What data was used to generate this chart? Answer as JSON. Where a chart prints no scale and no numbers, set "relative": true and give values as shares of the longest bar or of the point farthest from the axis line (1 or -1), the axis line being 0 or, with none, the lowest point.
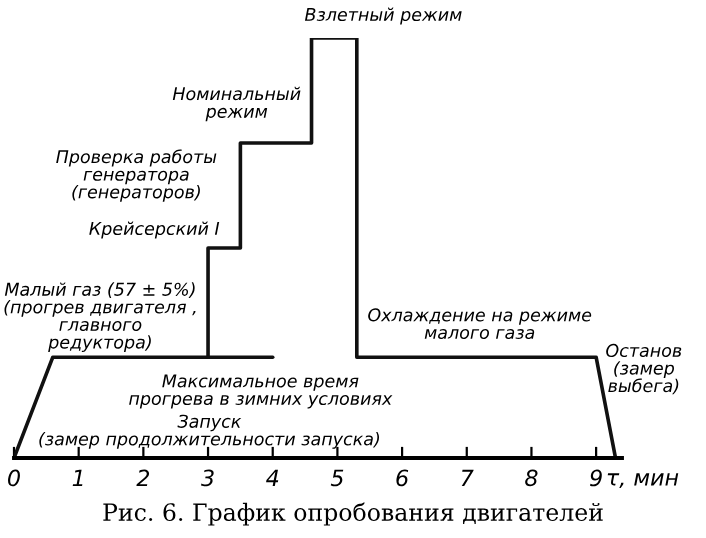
{
  "chart_data": {
    "type": "line",
    "relative": true,
    "title": "Рис. 6. График опробования двигателей",
    "xlabel": "τ, мин",
    "xlim": [
      0,
      9.4
    ],
    "xticks": [
      0,
      1,
      2,
      3,
      4,
      5,
      6,
      7,
      8,
      9
    ],
    "grid": false,
    "marker": "none",
    "line_style": "solid",
    "series": [
      {
        "color": "#111111",
        "x": [
          0,
          0.6,
          3,
          3,
          3.5,
          3.5,
          4.6,
          4.6,
          5.3,
          5.3,
          9.0,
          9.3
        ],
        "values": [
          0,
          0.24,
          0.24,
          0.5,
          0.5,
          0.75,
          0.75,
          1,
          1,
          0.24,
          0.24,
          0
        ]
      },
      {
        "color": "#111111",
        "x": [
          3,
          4
        ],
        "values": [
          0.24,
          0.24
        ]
      }
    ],
    "annotations": [
      {
        "text": "Взлетный режим",
        "x": 5.0,
        "y": 1
      },
      {
        "text": "Номинальный\nрежим",
        "x": 4.0,
        "y": 0.75
      },
      {
        "text": "Проверка работы\nгенератора\n(генераторов)",
        "x": 3.5,
        "y": 0.62
      },
      {
        "text": "Крейсерский I",
        "x": 3.25,
        "y": 0.5
      },
      {
        "text": "Малый газ (57 ± 5%)\n(прогрев двигателя ,\nглавного\nредуктора)",
        "x": 1.8,
        "y": 0.24
      },
      {
        "text": "Максимальное время\nпрогрева в зимних условиях",
        "x": 3.5,
        "y": 0.24
      },
      {
        "text": "Запуск\n(замер продолжительности запуска)",
        "x": 0.3,
        "y": 0.12
      },
      {
        "text": "Охлаждение на режиме\nмалого газа",
        "x": 7.2,
        "y": 0.24
      },
      {
        "text": "Останов\n(замер\nвыбега)",
        "x": 9.15,
        "y": 0.12
      }
    ]
  }
}
